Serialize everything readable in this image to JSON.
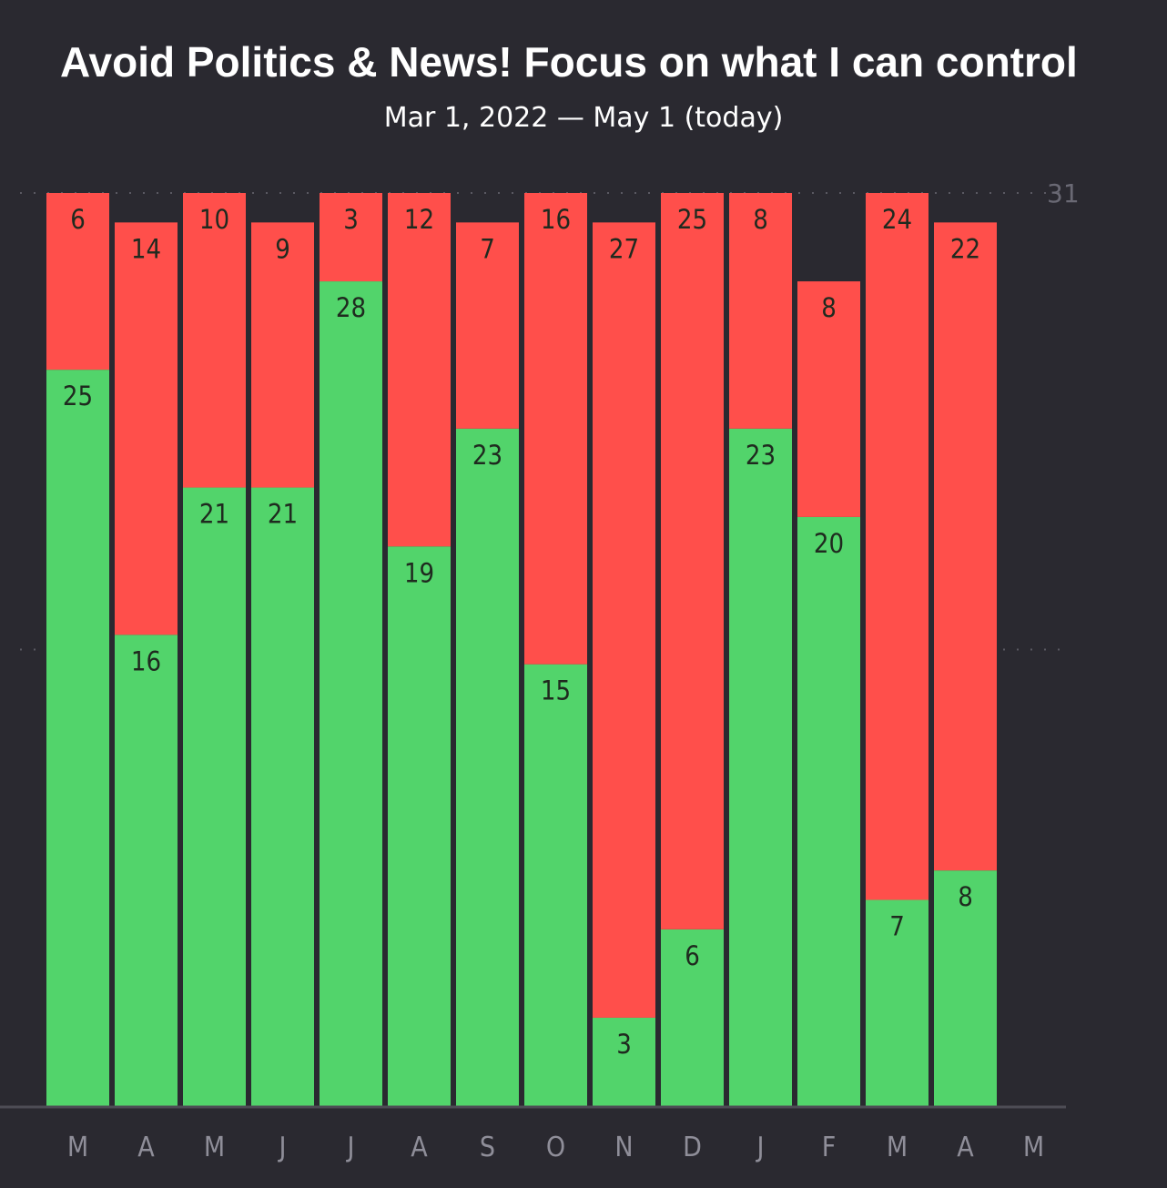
{
  "header": {
    "title": "Avoid Politics & News! Focus on what I can control",
    "subtitle": "Mar 1, 2022 — May 1 (today)"
  },
  "colors": {
    "background": "#2a2930",
    "success": "#52d46b",
    "failure": "#ff4f4b",
    "gridline": "#5a5962",
    "axis": "#4d4c55",
    "tick_text": "#8f8e99"
  },
  "chart_data": {
    "type": "bar",
    "stacked": true,
    "categories": [
      "M",
      "A",
      "M",
      "J",
      "J",
      "A",
      "S",
      "O",
      "N",
      "D",
      "J",
      "F",
      "M",
      "A",
      "M"
    ],
    "series": [
      {
        "color": "#52d46b",
        "values": [
          25,
          16,
          21,
          21,
          28,
          19,
          23,
          15,
          3,
          6,
          23,
          20,
          7,
          8,
          null
        ]
      },
      {
        "color": "#ff4f4b",
        "values": [
          6,
          14,
          10,
          9,
          3,
          12,
          7,
          16,
          27,
          25,
          8,
          8,
          24,
          22,
          null
        ]
      }
    ],
    "ylim": [
      0,
      31
    ],
    "y_max_label": "31",
    "gridlines": [
      15.5,
      31
    ],
    "legend": "none"
  }
}
